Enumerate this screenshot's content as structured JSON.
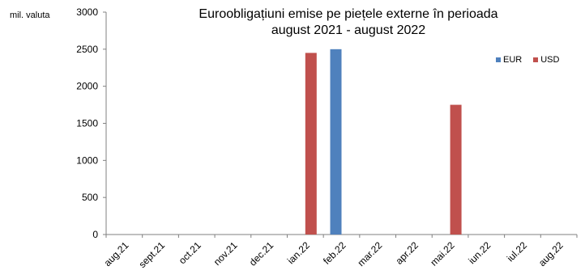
{
  "chart_data": {
    "type": "bar",
    "title_line1": "Euroobligațiuni emise pe piețele externe în perioada",
    "title_line2": "august 2021 - august 2022",
    "ylabel": "mil. valuta",
    "ylim": [
      0,
      3000
    ],
    "yticks": [
      0,
      500,
      1000,
      1500,
      2000,
      2500,
      3000
    ],
    "categories": [
      "aug.21",
      "sept.21",
      "oct.21",
      "nov.21",
      "dec.21",
      "ian.22",
      "feb.22",
      "mar.22",
      "apr.22",
      "mai.22",
      "iun.22",
      "iul.22",
      "aug.22"
    ],
    "series": [
      {
        "name": "EUR",
        "color": "#4f81bd",
        "values": [
          0,
          0,
          0,
          0,
          0,
          0,
          2500,
          0,
          0,
          0,
          0,
          0,
          0
        ]
      },
      {
        "name": "USD",
        "color": "#c0504d",
        "values": [
          0,
          0,
          0,
          0,
          0,
          2450,
          0,
          0,
          0,
          1750,
          0,
          0,
          0
        ]
      }
    ],
    "legend_position": "top-right",
    "grid": false
  }
}
